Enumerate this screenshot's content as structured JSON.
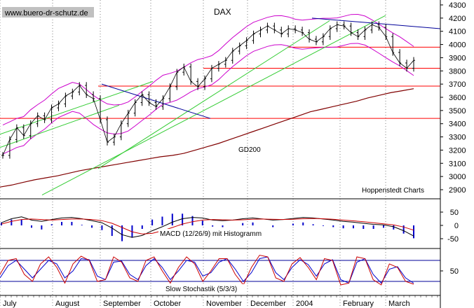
{
  "chart_data": [
    {
      "panel": "price",
      "type": "line",
      "title": "DAX",
      "watermark": "www.buero-dr-schutz.de",
      "source_note": "Hoppenstedt Charts",
      "ylim": [
        2800,
        4300
      ],
      "y_ticks": [
        2900,
        3000,
        3100,
        3200,
        3300,
        3400,
        3500,
        3600,
        3700,
        3800,
        3900,
        4000,
        4100,
        4200,
        4300
      ],
      "x_labels": [
        "July",
        "August",
        "September",
        "October",
        "November",
        "December",
        "2004",
        "February",
        "March"
      ],
      "horizontal_levels": [
        3440,
        3685,
        3820,
        3980
      ],
      "close_series": [
        3160,
        3280,
        3370,
        3310,
        3400,
        3460,
        3430,
        3520,
        3550,
        3610,
        3640,
        3690,
        3620,
        3590,
        3430,
        3260,
        3300,
        3400,
        3480,
        3560,
        3620,
        3560,
        3530,
        3590,
        3680,
        3790,
        3830,
        3720,
        3680,
        3740,
        3820,
        3850,
        3880,
        3950,
        3990,
        4030,
        4080,
        4110,
        4140,
        4110,
        4080,
        4120,
        4110,
        4090,
        4040,
        4020,
        4060,
        4120,
        4150,
        4140,
        4090,
        4060,
        4110,
        4150,
        4130,
        4060,
        3940,
        3860,
        3820,
        3880
      ],
      "ma200_label": "GD200",
      "ma200_series": [
        2920,
        2935,
        2955,
        2975,
        2990,
        3005,
        3025,
        3045,
        3060,
        3075,
        3090,
        3105,
        3120,
        3135,
        3150,
        3160,
        3175,
        3200,
        3225,
        3250,
        3280,
        3310,
        3340,
        3370,
        3400,
        3430,
        3460,
        3490,
        3510,
        3530,
        3550,
        3570,
        3595,
        3615,
        3635,
        3650,
        3665
      ],
      "series_colors": {
        "price": "#000000",
        "bands": "#cc00cc",
        "ma200": "#800000",
        "levels": "#ff0000",
        "trend_green": "#33cc33",
        "trend_blue": "#000099"
      }
    },
    {
      "panel": "macd",
      "type": "line",
      "label": "MACD (12/26/9) mit Histogramm",
      "y_ticks": [
        50,
        0,
        -50
      ],
      "macd_series": [
        10,
        25,
        32,
        20,
        15,
        22,
        28,
        30,
        25,
        18,
        10,
        -10,
        -35,
        -45,
        -38,
        -20,
        -5,
        12,
        25,
        30,
        28,
        20,
        18,
        20,
        25,
        28,
        24,
        20,
        22,
        26,
        30,
        28,
        24,
        20,
        15,
        12,
        8,
        4,
        2,
        -5,
        -20,
        -40
      ],
      "signal_series": [
        5,
        15,
        22,
        24,
        22,
        20,
        22,
        24,
        24,
        22,
        18,
        8,
        -8,
        -24,
        -32,
        -30,
        -20,
        -8,
        5,
        14,
        20,
        22,
        21,
        20,
        21,
        23,
        24,
        23,
        22,
        23,
        25,
        26,
        25,
        23,
        20,
        17,
        14,
        10,
        6,
        2,
        -6,
        -18
      ]
    },
    {
      "panel": "stochastic",
      "type": "line",
      "label": "Slow Stochastik (5/3/3)",
      "y_ticks": [
        50
      ],
      "reference_levels": [
        20,
        80
      ],
      "k_series": [
        40,
        80,
        85,
        40,
        20,
        70,
        90,
        60,
        15,
        70,
        92,
        80,
        20,
        25,
        90,
        75,
        30,
        20,
        80,
        90,
        50,
        15,
        60,
        90,
        70,
        20,
        50,
        85,
        85,
        40,
        10,
        60,
        95,
        90,
        30,
        20,
        70,
        88,
        60,
        25,
        85,
        80,
        10,
        15,
        90,
        85,
        25,
        10,
        70,
        60,
        20,
        12
      ],
      "d_series": [
        30,
        65,
        80,
        55,
        30,
        55,
        80,
        70,
        30,
        50,
        85,
        82,
        35,
        25,
        75,
        78,
        40,
        25,
        65,
        85,
        60,
        25,
        50,
        80,
        75,
        35,
        45,
        75,
        85,
        55,
        20,
        45,
        85,
        90,
        45,
        25,
        60,
        82,
        68,
        35,
        70,
        82,
        25,
        15,
        75,
        85,
        40,
        15,
        55,
        62,
        30,
        15
      ]
    }
  ]
}
